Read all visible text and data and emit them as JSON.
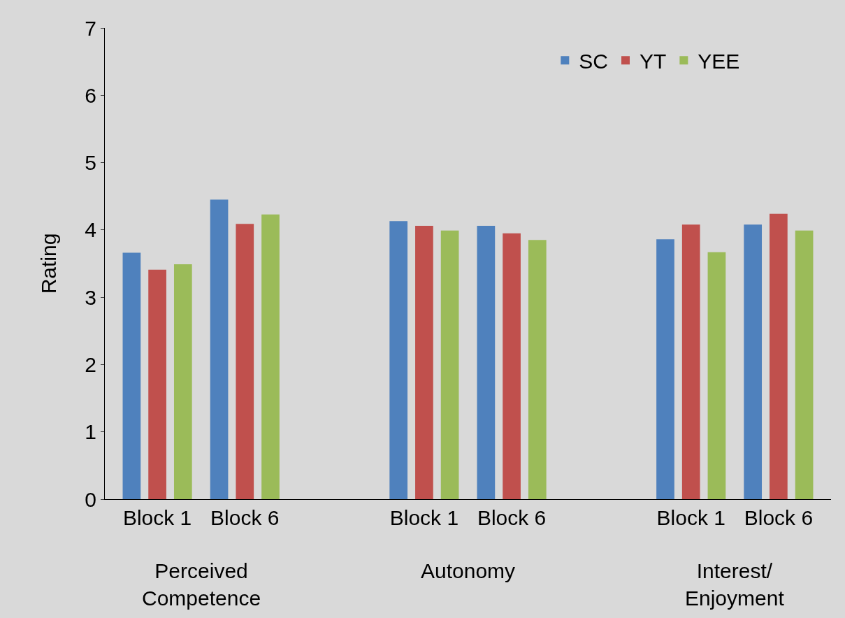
{
  "chart_data": {
    "type": "bar",
    "ylabel": "Rating",
    "categories": [
      "Block 1",
      "Block 6",
      "Block 1",
      "Block 6",
      "Block 1",
      "Block 6"
    ],
    "series": [
      {
        "name": "SC",
        "color": "#4f81bd",
        "values": [
          3.66,
          4.45,
          4.13,
          4.06,
          3.86,
          4.08
        ]
      },
      {
        "name": "YT",
        "color": "#c0504d",
        "values": [
          3.41,
          4.09,
          4.06,
          3.95,
          4.08,
          4.24
        ]
      },
      {
        "name": "YEE",
        "color": "#9bbb59",
        "values": [
          3.49,
          4.23,
          3.99,
          3.85,
          3.67,
          3.99
        ]
      }
    ],
    "annotations": [
      "Perceived Competence",
      "Autonomy",
      "Interest/ Enjoyment"
    ],
    "ylim": [
      0,
      7
    ],
    "yticks": [
      0,
      1,
      2,
      3,
      4,
      5,
      6,
      7
    ],
    "grid": false,
    "legend": "top right"
  }
}
